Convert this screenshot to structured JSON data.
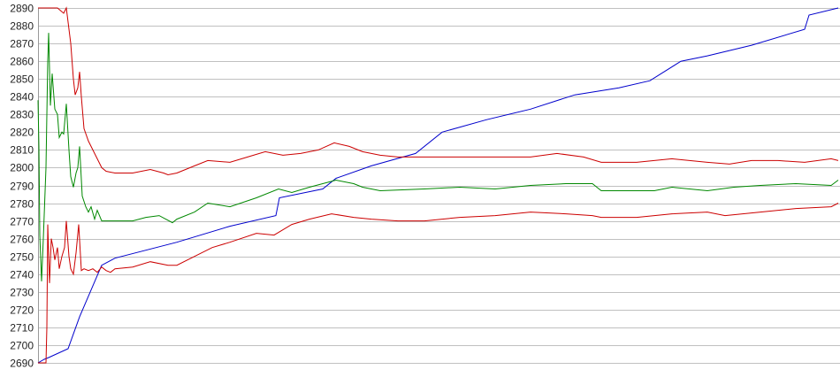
{
  "chart_data": {
    "type": "line",
    "title": "",
    "xlabel": "",
    "ylabel": "",
    "ylim": [
      2690,
      2890
    ],
    "xlim": [
      0,
      905
    ],
    "yticks": [
      "2690",
      "2700",
      "2710",
      "2720",
      "2730",
      "2740",
      "2750",
      "2760",
      "2770",
      "2780",
      "2790",
      "2800",
      "2810",
      "2820",
      "2830",
      "2840",
      "2850",
      "2860",
      "2870",
      "2880",
      "2890"
    ],
    "grid": true,
    "legend": "none",
    "series": [
      {
        "color": "#0000cc",
        "points": [
          [
            0,
            2690
          ],
          [
            7,
            2692
          ],
          [
            12,
            2693
          ],
          [
            34,
            2698
          ],
          [
            47,
            2716
          ],
          [
            72,
            2745
          ],
          [
            87,
            2749
          ],
          [
            157,
            2758
          ],
          [
            217,
            2767
          ],
          [
            269,
            2773
          ],
          [
            273,
            2783
          ],
          [
            322,
            2788
          ],
          [
            337,
            2794
          ],
          [
            377,
            2801
          ],
          [
            427,
            2808
          ],
          [
            457,
            2820
          ],
          [
            507,
            2827
          ],
          [
            557,
            2833
          ],
          [
            607,
            2841
          ],
          [
            657,
            2845
          ],
          [
            692,
            2849
          ],
          [
            727,
            2860
          ],
          [
            757,
            2863
          ],
          [
            807,
            2869
          ],
          [
            867,
            2878
          ],
          [
            872,
            2886
          ],
          [
            905,
            2890
          ]
        ]
      },
      {
        "color": "#008800",
        "points": [
          [
            0,
            2838
          ],
          [
            1,
            2812
          ],
          [
            2,
            2762
          ],
          [
            4,
            2736
          ],
          [
            6,
            2760
          ],
          [
            9,
            2800
          ],
          [
            11,
            2860
          ],
          [
            12,
            2876
          ],
          [
            14,
            2835
          ],
          [
            16,
            2853
          ],
          [
            19,
            2833
          ],
          [
            22,
            2830
          ],
          [
            24,
            2817
          ],
          [
            27,
            2820
          ],
          [
            29,
            2819
          ],
          [
            32,
            2836
          ],
          [
            35,
            2810
          ],
          [
            37,
            2795
          ],
          [
            40,
            2789
          ],
          [
            43,
            2797
          ],
          [
            45,
            2800
          ],
          [
            47,
            2812
          ],
          [
            50,
            2784
          ],
          [
            54,
            2778
          ],
          [
            57,
            2775
          ],
          [
            60,
            2778
          ],
          [
            64,
            2771
          ],
          [
            67,
            2776
          ],
          [
            72,
            2770
          ],
          [
            87,
            2770
          ],
          [
            107,
            2770
          ],
          [
            122,
            2772
          ],
          [
            137,
            2773
          ],
          [
            152,
            2769
          ],
          [
            157,
            2771
          ],
          [
            177,
            2775
          ],
          [
            192,
            2780
          ],
          [
            217,
            2778
          ],
          [
            247,
            2783
          ],
          [
            272,
            2788
          ],
          [
            287,
            2786
          ],
          [
            307,
            2789
          ],
          [
            337,
            2793
          ],
          [
            357,
            2791
          ],
          [
            367,
            2789
          ],
          [
            387,
            2787
          ],
          [
            437,
            2788
          ],
          [
            477,
            2789
          ],
          [
            517,
            2788
          ],
          [
            557,
            2790
          ],
          [
            597,
            2791
          ],
          [
            627,
            2791
          ],
          [
            637,
            2787
          ],
          [
            667,
            2787
          ],
          [
            697,
            2787
          ],
          [
            717,
            2789
          ],
          [
            757,
            2787
          ],
          [
            787,
            2789
          ],
          [
            817,
            2790
          ],
          [
            857,
            2791
          ],
          [
            897,
            2790
          ],
          [
            905,
            2793
          ]
        ]
      },
      {
        "color": "#cc0000",
        "points": [
          [
            0,
            2890
          ],
          [
            22,
            2890
          ],
          [
            29,
            2887
          ],
          [
            32,
            2890
          ],
          [
            37,
            2870
          ],
          [
            40,
            2850
          ],
          [
            42,
            2841
          ],
          [
            45,
            2845
          ],
          [
            47,
            2854
          ],
          [
            49,
            2840
          ],
          [
            52,
            2822
          ],
          [
            57,
            2815
          ],
          [
            62,
            2810
          ],
          [
            67,
            2805
          ],
          [
            72,
            2800
          ],
          [
            77,
            2798
          ],
          [
            87,
            2797
          ],
          [
            107,
            2797
          ],
          [
            127,
            2799
          ],
          [
            142,
            2797
          ],
          [
            147,
            2796
          ],
          [
            157,
            2797
          ],
          [
            177,
            2801
          ],
          [
            192,
            2804
          ],
          [
            217,
            2803
          ],
          [
            237,
            2806
          ],
          [
            257,
            2809
          ],
          [
            277,
            2807
          ],
          [
            297,
            2808
          ],
          [
            317,
            2810
          ],
          [
            335,
            2814
          ],
          [
            352,
            2812
          ],
          [
            367,
            2809
          ],
          [
            387,
            2807
          ],
          [
            407,
            2806
          ],
          [
            437,
            2806
          ],
          [
            477,
            2806
          ],
          [
            517,
            2806
          ],
          [
            557,
            2806
          ],
          [
            587,
            2808
          ],
          [
            617,
            2806
          ],
          [
            637,
            2803
          ],
          [
            677,
            2803
          ],
          [
            717,
            2805
          ],
          [
            757,
            2803
          ],
          [
            782,
            2802
          ],
          [
            807,
            2804
          ],
          [
            837,
            2804
          ],
          [
            867,
            2803
          ],
          [
            897,
            2805
          ],
          [
            905,
            2804
          ]
        ]
      },
      {
        "color": "#cc0000",
        "points": [
          [
            0,
            2690
          ],
          [
            9,
            2690
          ],
          [
            10,
            2710
          ],
          [
            11,
            2768
          ],
          [
            13,
            2735
          ],
          [
            15,
            2760
          ],
          [
            17,
            2755
          ],
          [
            19,
            2748
          ],
          [
            22,
            2755
          ],
          [
            24,
            2743
          ],
          [
            27,
            2750
          ],
          [
            30,
            2755
          ],
          [
            32,
            2770
          ],
          [
            35,
            2750
          ],
          [
            37,
            2743
          ],
          [
            40,
            2740
          ],
          [
            43,
            2752
          ],
          [
            46,
            2768
          ],
          [
            49,
            2742
          ],
          [
            52,
            2743
          ],
          [
            57,
            2742
          ],
          [
            62,
            2743
          ],
          [
            67,
            2741
          ],
          [
            72,
            2744
          ],
          [
            77,
            2742
          ],
          [
            82,
            2741
          ],
          [
            87,
            2743
          ],
          [
            107,
            2744
          ],
          [
            127,
            2747
          ],
          [
            147,
            2745
          ],
          [
            157,
            2745
          ],
          [
            177,
            2750
          ],
          [
            197,
            2755
          ],
          [
            217,
            2758
          ],
          [
            247,
            2763
          ],
          [
            267,
            2762
          ],
          [
            287,
            2768
          ],
          [
            307,
            2771
          ],
          [
            332,
            2774
          ],
          [
            357,
            2772
          ],
          [
            377,
            2771
          ],
          [
            407,
            2770
          ],
          [
            437,
            2770
          ],
          [
            477,
            2772
          ],
          [
            517,
            2773
          ],
          [
            557,
            2775
          ],
          [
            597,
            2774
          ],
          [
            627,
            2773
          ],
          [
            637,
            2772
          ],
          [
            677,
            2772
          ],
          [
            717,
            2774
          ],
          [
            757,
            2775
          ],
          [
            777,
            2773
          ],
          [
            817,
            2775
          ],
          [
            857,
            2777
          ],
          [
            897,
            2778
          ],
          [
            905,
            2780
          ]
        ]
      }
    ]
  }
}
